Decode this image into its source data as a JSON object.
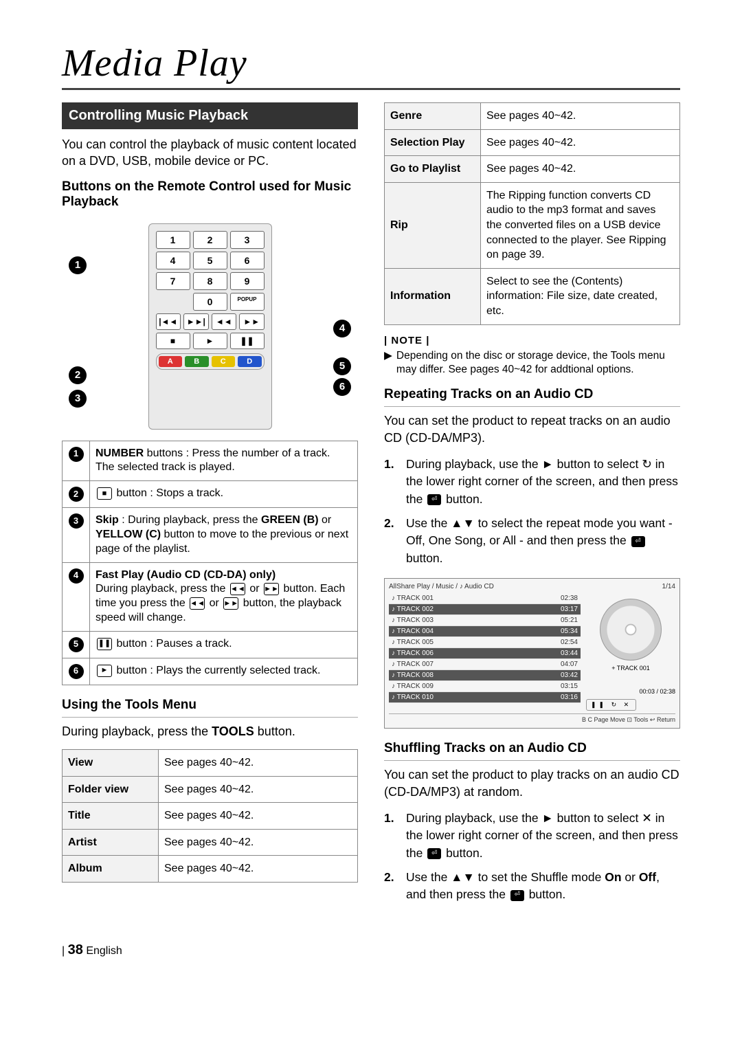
{
  "page": {
    "title": "Media Play",
    "footer_page": "38",
    "footer_lang": "English"
  },
  "left": {
    "section_bar": "Controlling Music Playback",
    "intro": "You can control the playback of music content located on a DVD, USB, mobile device or PC.",
    "remote_heading": "Buttons on the Remote Control used for Music Playback",
    "remote": {
      "numpad": [
        "1",
        "2",
        "3",
        "4",
        "5",
        "6",
        "7",
        "8",
        "9",
        "",
        "0",
        "POPUP"
      ],
      "trans": [
        "|◄◄",
        "►►|",
        "◄◄",
        "►►"
      ],
      "play": [
        "■",
        "►",
        "❚❚"
      ],
      "colors": [
        {
          "label": "A",
          "color": "#d33"
        },
        {
          "label": "B",
          "color": "#2a8f2a"
        },
        {
          "label": "C",
          "color": "#e6c100"
        },
        {
          "label": "D",
          "color": "#2255cc"
        }
      ]
    },
    "btn_table": [
      {
        "n": "1",
        "html": "<b>NUMBER</b> buttons : Press the number of a track. The selected track is played."
      },
      {
        "n": "2",
        "html": "<span class='sqbtn'>■</span> button : Stops a track."
      },
      {
        "n": "3",
        "html": "<b>Skip</b> : During playback, press the <b>GREEN (B)</b> or <b>YELLOW (C)</b> button to move to the previous or next page of the playlist."
      },
      {
        "n": "4",
        "html": "<b>Fast Play (Audio CD (CD-DA) only)</b><br>During playback, press the <span class='sqbtn'>◄◄</span> or <span class='sqbtn'>►►</span> button. Each time you press the <span class='sqbtn'>◄◄</span> or <span class='sqbtn'>►►</span> button, the playback speed will change."
      },
      {
        "n": "5",
        "html": "<span class='sqbtn'>❚❚</span> button : Pauses a track."
      },
      {
        "n": "6",
        "html": "<span class='sqbtn'>►</span> button : Plays the currently selected track."
      }
    ],
    "tools_heading": "Using the Tools Menu",
    "tools_intro": "During playback, press the <b>TOOLS</b> button.",
    "tools_table": [
      [
        "View",
        "See pages 40~42."
      ],
      [
        "Folder view",
        "See pages 40~42."
      ],
      [
        "Title",
        "See pages 40~42."
      ],
      [
        "Artist",
        "See pages 40~42."
      ],
      [
        "Album",
        "See pages 40~42."
      ]
    ]
  },
  "right": {
    "top_table": [
      [
        "Genre",
        "See pages 40~42."
      ],
      [
        "Selection Play",
        "See pages 40~42."
      ],
      [
        "Go to Playlist",
        "See pages 40~42."
      ],
      [
        "Rip",
        "The Ripping function converts CD audio to the mp3 format and saves the converted files on a USB device connected to the player. See Ripping on page 39."
      ],
      [
        "Information",
        "Select to see the (Contents) information: File size, date created, etc."
      ]
    ],
    "note_label": "| NOTE |",
    "note_body": "Depending on the disc or storage device, the Tools menu may differ. See pages 40~42 for addtional options.",
    "repeat_heading": "Repeating Tracks on an Audio CD",
    "repeat_intro": "You can set the product to repeat tracks on an audio CD (CD-DA/MP3).",
    "repeat_steps": [
      "During playback, use the ► button to select <span style='font-family:serif'>↻</span> in the lower right corner of the screen, and then press the <span class='entsq'>⏎</span> button.",
      "Use the ▲▼ to select the repeat mode you want - Off, One Song, or All - and then press the <span class='entsq'>⏎</span> button."
    ],
    "player": {
      "crumb": "AllShare Play  / Music /  ♪  Audio CD",
      "corner": "1/14",
      "tracks": [
        {
          "name": "TRACK 001",
          "time": "02:38",
          "hl": false
        },
        {
          "name": "TRACK 002",
          "time": "03:17",
          "hl": true
        },
        {
          "name": "TRACK 003",
          "time": "05:21",
          "hl": false
        },
        {
          "name": "TRACK 004",
          "time": "05:34",
          "hl": true
        },
        {
          "name": "TRACK 005",
          "time": "02:54",
          "hl": false
        },
        {
          "name": "TRACK 006",
          "time": "03:44",
          "hl": true
        },
        {
          "name": "TRACK 007",
          "time": "04:07",
          "hl": false
        },
        {
          "name": "TRACK 008",
          "time": "03:42",
          "hl": true
        },
        {
          "name": "TRACK 009",
          "time": "03:15",
          "hl": false
        },
        {
          "name": "TRACK 010",
          "time": "03:16",
          "hl": true
        }
      ],
      "now": "+ TRACK 001",
      "timecode": "00:03 / 02:38",
      "ctrl": "❚❚   ↻   ✕",
      "bottom": "B C  Page Move    ⊡ Tools    ↩ Return"
    },
    "shuffle_heading": "Shuffling Tracks on an Audio CD",
    "shuffle_intro": "You can set the product to play tracks on an audio CD (CD-DA/MP3) at random.",
    "shuffle_steps": [
      "During playback, use the ► button to select <span style='font-family:serif'>✕</span> in the lower right corner of the screen, and then press the <span class='entsq'>⏎</span> button.",
      "Use the ▲▼ to set the Shuffle mode <b>On</b> or <b>Off</b>, and then press the <span class='entsq'>⏎</span> button."
    ]
  }
}
